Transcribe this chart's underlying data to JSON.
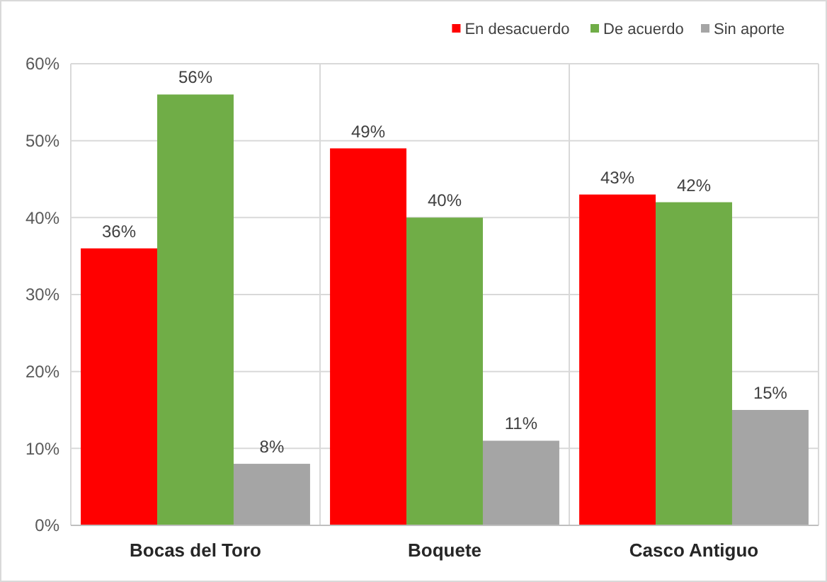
{
  "chart_data": {
    "type": "bar",
    "categories": [
      "Bocas del Toro",
      "Boquete",
      "Casco Antiguo"
    ],
    "series": [
      {
        "name": "En desacuerdo",
        "color": "#ff0000",
        "values": [
          36,
          49,
          43
        ],
        "value_labels": [
          "36%",
          "49%",
          "43%"
        ]
      },
      {
        "name": "De acuerdo",
        "color": "#70ad47",
        "values": [
          56,
          40,
          42
        ],
        "value_labels": [
          "56%",
          "40%",
          "42%"
        ]
      },
      {
        "name": "Sin aporte",
        "color": "#a5a5a5",
        "values": [
          8,
          11,
          15
        ],
        "value_labels": [
          "8%",
          "11%",
          "15%"
        ]
      }
    ],
    "ylim": [
      0,
      60
    ],
    "yticks": [
      {
        "value": 0,
        "label": "0%"
      },
      {
        "value": 10,
        "label": "10%"
      },
      {
        "value": 20,
        "label": "20%"
      },
      {
        "value": 30,
        "label": "30%"
      },
      {
        "value": 40,
        "label": "40%"
      },
      {
        "value": 50,
        "label": "50%"
      },
      {
        "value": 60,
        "label": "60%"
      }
    ],
    "grid": true,
    "legend": "top right"
  }
}
